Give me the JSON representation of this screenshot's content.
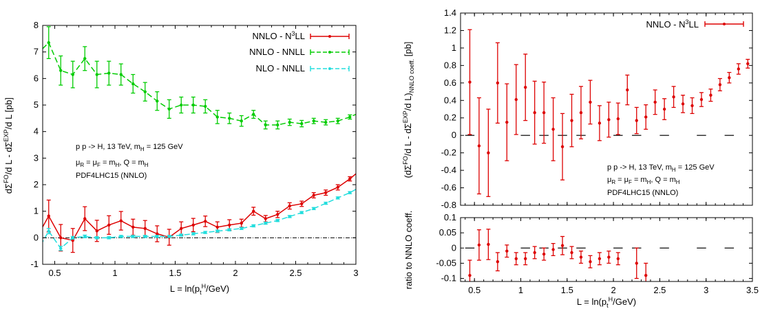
{
  "chart_data": [
    {
      "type": "line",
      "panel": "left",
      "xlabel_base": "L = ln(p",
      "xlabel_sub": "t",
      "xlabel_sup": "H",
      "xlabel_end": "/GeV)",
      "ylabel_a": "dΣ",
      "ylabel_sup1": "FO",
      "ylabel_b": "/d L - dΣ",
      "ylabel_sup2": "EXP",
      "ylabel_c": "/d L [pb]",
      "xlim": [
        0.4,
        3.0
      ],
      "ylim": [
        -1,
        8
      ],
      "xticks": [
        "0.5",
        "1",
        "1.5",
        "2",
        "2.5",
        "3"
      ],
      "yticks": [
        "-1",
        "0",
        "1",
        "2",
        "3",
        "4",
        "5",
        "6",
        "7",
        "8"
      ],
      "zero_line": true,
      "legend_position": "top-right",
      "annotation": {
        "line1_a": "p p -> H, 13 TeV, m",
        "line1_sub": "H",
        "line1_b": " = 125 GeV",
        "line2_a": "μ",
        "line2_s1": "R",
        "line2_b": " = μ",
        "line2_s2": "F",
        "line2_c": " = m",
        "line2_s3": "H",
        "line2_d": ", Q = m",
        "line2_s4": "H",
        "line3": "PDF4LHC15 (NNLO)"
      },
      "series": [
        {
          "name_base": "NNLO - N",
          "name_sup": "3",
          "name_end": "LL",
          "color": "#dd0000",
          "dash": false,
          "x": [
            0.35,
            0.45,
            0.55,
            0.65,
            0.75,
            0.85,
            0.95,
            1.05,
            1.15,
            1.25,
            1.35,
            1.45,
            1.55,
            1.65,
            1.75,
            1.85,
            1.95,
            2.05,
            2.15,
            2.25,
            2.35,
            2.45,
            2.55,
            2.65,
            2.75,
            2.85,
            2.95,
            3.05
          ],
          "y": [
            0.0,
            0.82,
            0.0,
            -0.1,
            0.72,
            0.26,
            0.48,
            0.64,
            0.4,
            0.35,
            0.15,
            0.02,
            0.35,
            0.48,
            0.62,
            0.4,
            0.48,
            0.55,
            1.0,
            0.72,
            0.88,
            1.2,
            1.28,
            1.6,
            1.7,
            1.9,
            2.22,
            2.6
          ],
          "err": [
            0.3,
            0.6,
            0.5,
            0.45,
            0.45,
            0.4,
            0.35,
            0.35,
            0.3,
            0.3,
            0.3,
            0.3,
            0.25,
            0.25,
            0.2,
            0.2,
            0.2,
            0.15,
            0.15,
            0.12,
            0.12,
            0.12,
            0.1,
            0.1,
            0.1,
            0.1,
            0.08,
            0.08
          ]
        },
        {
          "name": "NNLO - NNLL",
          "color": "#00cc00",
          "dash": true,
          "x": [
            0.35,
            0.45,
            0.55,
            0.65,
            0.75,
            0.85,
            0.95,
            1.05,
            1.15,
            1.25,
            1.35,
            1.45,
            1.55,
            1.65,
            1.75,
            1.85,
            1.95,
            2.05,
            2.15,
            2.25,
            2.35,
            2.45,
            2.55,
            2.65,
            2.75,
            2.85,
            2.95,
            3.05
          ],
          "y": [
            6.9,
            7.35,
            6.3,
            6.15,
            6.75,
            6.15,
            6.2,
            6.15,
            5.8,
            5.5,
            5.15,
            4.85,
            5.0,
            5.0,
            4.95,
            4.55,
            4.5,
            4.4,
            4.65,
            4.25,
            4.25,
            4.35,
            4.3,
            4.4,
            4.35,
            4.4,
            4.55,
            4.75
          ],
          "err": [
            0.5,
            0.6,
            0.55,
            0.5,
            0.45,
            0.5,
            0.45,
            0.4,
            0.35,
            0.35,
            0.35,
            0.35,
            0.3,
            0.3,
            0.25,
            0.25,
            0.2,
            0.2,
            0.15,
            0.15,
            0.15,
            0.12,
            0.12,
            0.1,
            0.1,
            0.1,
            0.08,
            0.08
          ]
        },
        {
          "name": "NLO - NNLL",
          "color": "#22dddd",
          "dash": true,
          "x": [
            0.35,
            0.45,
            0.55,
            0.65,
            0.75,
            0.85,
            0.95,
            1.05,
            1.15,
            1.25,
            1.35,
            1.45,
            1.55,
            1.65,
            1.75,
            1.85,
            1.95,
            2.05,
            2.15,
            2.25,
            2.35,
            2.45,
            2.55,
            2.65,
            2.75,
            2.85,
            2.95,
            3.05
          ],
          "y": [
            -0.55,
            0.25,
            -0.4,
            0.0,
            0.05,
            0.0,
            0.0,
            0.05,
            0.05,
            0.05,
            0.05,
            0.05,
            0.1,
            0.15,
            0.2,
            0.25,
            0.3,
            0.35,
            0.45,
            0.55,
            0.65,
            0.8,
            0.95,
            1.1,
            1.3,
            1.5,
            1.7,
            1.95
          ],
          "err": [
            0.1,
            0.1,
            0.08,
            0.05,
            0.05,
            0.04,
            0.04,
            0.04,
            0.04,
            0.04,
            0.04,
            0.04,
            0.04,
            0.04,
            0.04,
            0.04,
            0.04,
            0.04,
            0.04,
            0.04,
            0.04,
            0.04,
            0.04,
            0.04,
            0.04,
            0.04,
            0.04,
            0.04
          ]
        }
      ]
    },
    {
      "type": "scatter",
      "panel": "right-top",
      "ylabel_a": "(dΣ",
      "ylabel_sup1": "FO",
      "ylabel_b": "/d L - dΣ",
      "ylabel_sup2": "EXP",
      "ylabel_c": "/d L)",
      "ylabel_sub": "NNLO coeff.",
      "ylabel_d": " [pb]",
      "xlim": [
        0.35,
        3.5
      ],
      "ylim": [
        -0.8,
        1.4
      ],
      "yticks": [
        "-0.8",
        "-0.6",
        "-0.4",
        "-0.2",
        "0",
        "0.2",
        "0.4",
        "0.6",
        "0.8",
        "1",
        "1.2",
        "1.4"
      ],
      "legend_position": "top-right",
      "annotation": {
        "line1_a": "p p -> H, 13 TeV, m",
        "line1_sub": "H",
        "line1_b": " = 125 GeV",
        "line2_a": "μ",
        "line2_s1": "R",
        "line2_b": " = μ",
        "line2_s2": "F",
        "line2_c": " = m",
        "line2_s3": "H",
        "line2_d": ", Q = m",
        "line2_s4": "H",
        "line3": "PDF4LHC15 (NNLO)"
      },
      "series": [
        {
          "name_base": "NNLO - N",
          "name_sup": "3",
          "name_end": "LL",
          "color": "#dd0000",
          "x": [
            0.45,
            0.55,
            0.65,
            0.75,
            0.85,
            0.95,
            1.05,
            1.15,
            1.25,
            1.35,
            1.45,
            1.55,
            1.65,
            1.75,
            1.85,
            1.95,
            2.05,
            2.15,
            2.25,
            2.35,
            2.45,
            2.55,
            2.65,
            2.75,
            2.85,
            2.95,
            3.05,
            3.15,
            3.25,
            3.35,
            3.45
          ],
          "y": [
            0.61,
            -0.12,
            -0.2,
            0.6,
            0.15,
            0.41,
            0.55,
            0.26,
            0.26,
            0.07,
            -0.13,
            0.17,
            0.26,
            0.38,
            0.14,
            0.18,
            0.19,
            0.52,
            0.17,
            0.21,
            0.38,
            0.3,
            0.44,
            0.36,
            0.34,
            0.41,
            0.46,
            0.58,
            0.66,
            0.76,
            0.82
          ],
          "err": [
            0.6,
            0.55,
            0.5,
            0.46,
            0.44,
            0.4,
            0.38,
            0.36,
            0.35,
            0.36,
            0.38,
            0.3,
            0.3,
            0.25,
            0.2,
            0.2,
            0.18,
            0.17,
            0.15,
            0.14,
            0.14,
            0.12,
            0.12,
            0.1,
            0.09,
            0.08,
            0.07,
            0.07,
            0.06,
            0.06,
            0.05
          ]
        }
      ],
      "black_segments_x": [
        0.45,
        1.05,
        1.25,
        1.45,
        1.65,
        2.05,
        2.25,
        2.55,
        2.95,
        3.25
      ]
    },
    {
      "type": "scatter",
      "panel": "right-bottom",
      "ylabel": "ratio to NNLO coeff.",
      "xlabel_base": "L = ln(p",
      "xlabel_sub": "t",
      "xlabel_sup": "H",
      "xlabel_end": "/GeV)",
      "xlim": [
        0.35,
        3.5
      ],
      "ylim": [
        -0.11,
        0.1
      ],
      "xticks": [
        "0.5",
        "1",
        "1.5",
        "2",
        "2.5",
        "3",
        "3.5"
      ],
      "yticks": [
        "-0.1",
        "-0.05",
        "0",
        "0.05",
        "0.1"
      ],
      "series": [
        {
          "name_base": "NNLO - N",
          "name_sup": "3",
          "name_end": "LL",
          "color": "#dd0000",
          "x": [
            0.45,
            0.55,
            0.65,
            0.75,
            0.85,
            0.95,
            1.05,
            1.15,
            1.25,
            1.35,
            1.45,
            1.55,
            1.65,
            1.75,
            1.85,
            1.95,
            2.05,
            2.25,
            2.35
          ],
          "y": [
            -0.09,
            0.01,
            0.012,
            -0.045,
            -0.01,
            -0.035,
            -0.035,
            -0.015,
            -0.02,
            -0.005,
            0.008,
            -0.015,
            -0.03,
            -0.045,
            -0.035,
            -0.03,
            -0.035,
            -0.05,
            -0.09
          ],
          "err": [
            0.05,
            0.05,
            0.05,
            0.03,
            0.02,
            0.02,
            0.02,
            0.02,
            0.02,
            0.02,
            0.03,
            0.02,
            0.02,
            0.02,
            0.02,
            0.02,
            0.02,
            0.05,
            0.04
          ]
        }
      ],
      "black_segments_x": [
        0.45,
        1.05,
        1.25,
        1.45,
        1.65,
        2.05,
        2.25,
        2.55,
        2.95,
        3.25
      ]
    }
  ]
}
